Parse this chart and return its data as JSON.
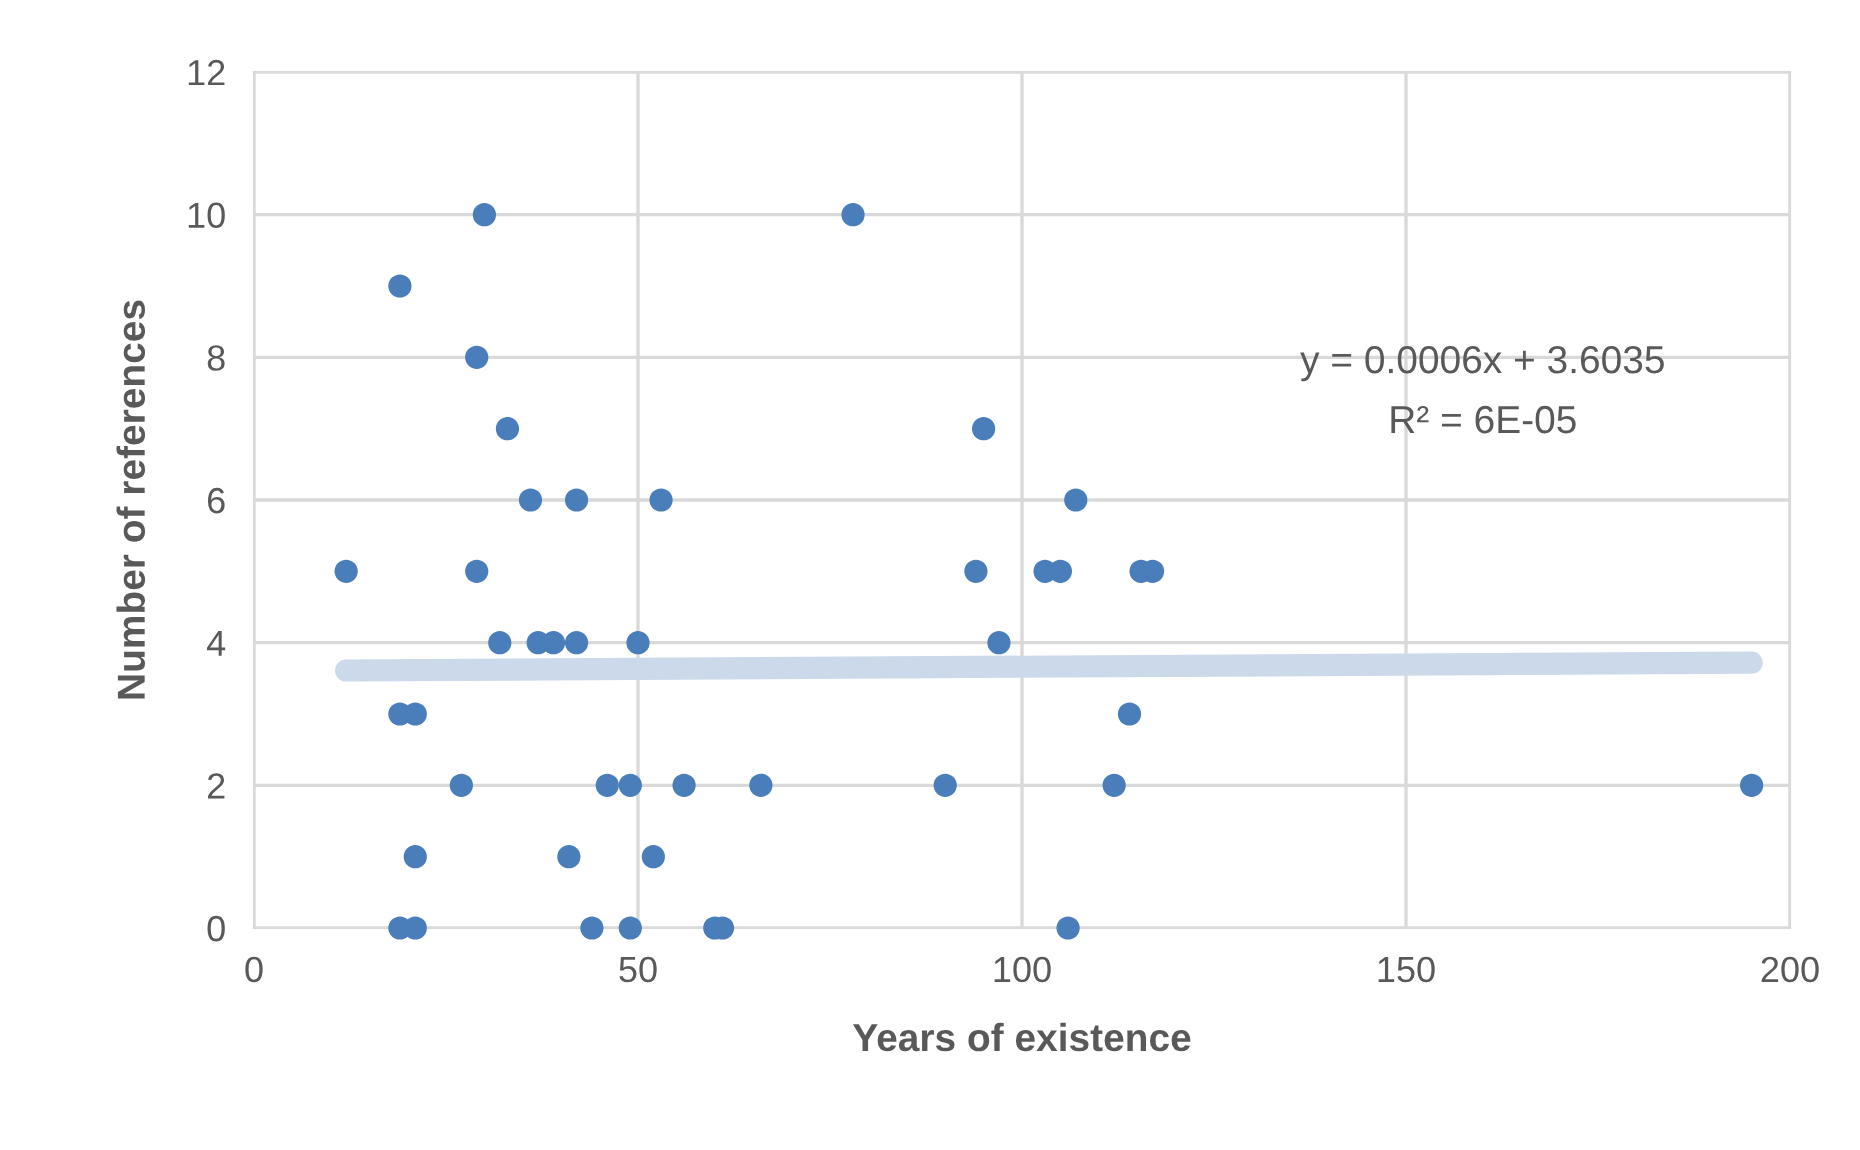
{
  "chart_data": {
    "type": "scatter",
    "xlabel": "Years of existence",
    "ylabel": "Number of references",
    "xlim": [
      0,
      200
    ],
    "xticks": [
      0,
      50,
      100,
      150,
      200
    ],
    "ylim": [
      0,
      12
    ],
    "yticks": [
      0,
      2,
      4,
      6,
      8,
      10,
      12
    ],
    "grid": true,
    "series": [
      {
        "color": "#4a7ebb",
        "marker": "circle",
        "x": [
          30,
          19,
          29,
          33,
          36,
          42,
          53,
          12,
          29,
          32,
          37,
          39,
          42,
          50,
          19,
          21,
          27,
          46,
          49,
          56,
          66,
          21,
          41,
          52,
          19,
          21,
          44,
          49,
          60,
          61,
          78,
          95,
          107,
          94,
          103,
          105,
          115.5,
          117,
          97,
          114,
          90,
          112,
          106,
          195
        ],
        "values": [
          10,
          9,
          8,
          7,
          6,
          6,
          6,
          5,
          5,
          4,
          4,
          4,
          4,
          4,
          3,
          3,
          2,
          2,
          2,
          2,
          2,
          1,
          1,
          1,
          0,
          0,
          0,
          0,
          0,
          0,
          10,
          7,
          6,
          5,
          5,
          5,
          5,
          5,
          4,
          3,
          2,
          2,
          0,
          2
        ]
      },
      {
        "type": "line",
        "marker": "none",
        "color": "#ccd9ea",
        "x": [
          12,
          195
        ],
        "values": [
          3.61,
          3.72
        ]
      }
    ],
    "annotations": [
      "y = 0.0006x + 3.6035",
      "R² = 6E-05"
    ]
  }
}
